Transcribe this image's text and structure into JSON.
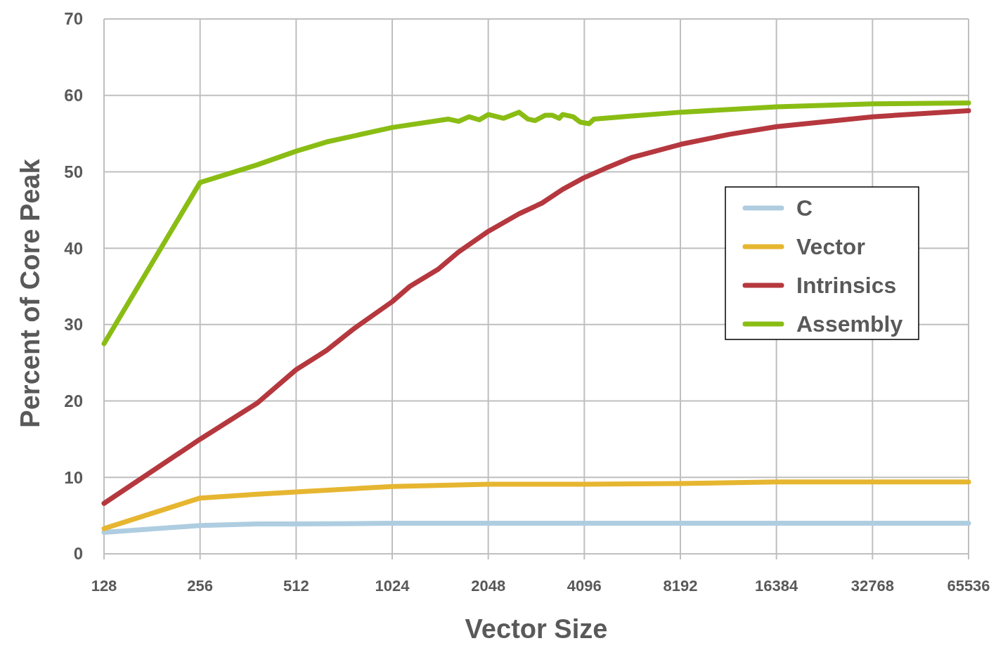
{
  "chart_data": {
    "type": "line",
    "xlabel": "Vector Size",
    "ylabel": "Percent of Core Peak",
    "log": "x",
    "xlim": [
      128,
      65536
    ],
    "xticks": [
      128,
      256,
      512,
      1024,
      2048,
      4096,
      8192,
      16384,
      32768,
      65536
    ],
    "ylim": [
      0,
      70
    ],
    "yticks": [
      0,
      10,
      20,
      30,
      40,
      50,
      60,
      70
    ],
    "grid": true,
    "legend": "right",
    "line_style": "solid",
    "marker": "none",
    "series": [
      {
        "name": "C",
        "color": "#afcde0",
        "x": [
          128,
          256,
          386,
          512,
          1024,
          2048,
          4096,
          8192,
          16384,
          32768,
          65536
        ],
        "values": [
          2.8,
          3.7,
          3.9,
          3.9,
          4.0,
          4.0,
          4.0,
          4.0,
          4.0,
          4.0,
          4.0
        ]
      },
      {
        "name": "Vector",
        "color": "#e6b631",
        "x": [
          128,
          256,
          386,
          512,
          1024,
          2048,
          4096,
          8192,
          16384,
          32768,
          65536
        ],
        "values": [
          3.3,
          7.3,
          7.8,
          8.1,
          8.8,
          9.1,
          9.1,
          9.2,
          9.4,
          9.4,
          9.4
        ]
      },
      {
        "name": "Intrinsics",
        "color": "#b5383e",
        "x": [
          128,
          256,
          386,
          512,
          637,
          779,
          1024,
          1163,
          1422,
          1652,
          2048,
          2556,
          3017,
          3505,
          4075,
          4737,
          5790,
          8226,
          11681,
          16384,
          32768,
          65536
        ],
        "values": [
          6.6,
          15.0,
          19.7,
          24.1,
          26.6,
          29.5,
          33.0,
          35.0,
          37.2,
          39.5,
          42.2,
          44.5,
          45.9,
          47.7,
          49.2,
          50.4,
          51.9,
          53.6,
          54.9,
          55.9,
          57.2,
          58.0
        ]
      },
      {
        "name": "Assembly",
        "color": "#8abd14",
        "x": [
          128,
          256,
          386,
          512,
          637,
          1024,
          1532,
          1652,
          1782,
          1920,
          2048,
          2289,
          2556,
          2727,
          2869,
          3093,
          3251,
          3417,
          3505,
          3779,
          3975,
          4240,
          4390,
          5790,
          8226,
          16384,
          32768,
          65536
        ],
        "values": [
          27.5,
          48.6,
          50.9,
          52.7,
          53.9,
          55.8,
          56.9,
          56.6,
          57.2,
          56.8,
          57.5,
          57.0,
          57.8,
          56.9,
          56.7,
          57.4,
          57.4,
          57.0,
          57.5,
          57.2,
          56.5,
          56.3,
          56.9,
          57.3,
          57.8,
          58.5,
          58.9,
          59.0
        ]
      }
    ]
  }
}
